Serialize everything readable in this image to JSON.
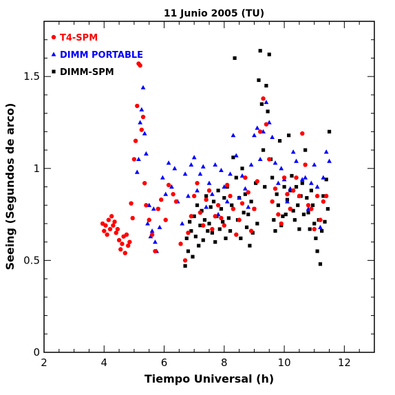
{
  "chart_data": {
    "type": "scatter",
    "title": "11 Junio 2005 (TU)",
    "xlabel": "Tiempo Universal (h)",
    "ylabel": "Seeing (Segundos de arco)",
    "xlim": [
      2,
      13
    ],
    "ylim": [
      0,
      1.8
    ],
    "xticks": [
      2,
      4,
      6,
      8,
      10,
      12
    ],
    "xtick_labels": [
      "2",
      "4",
      "6",
      "8",
      "10",
      "12"
    ],
    "yticks": [
      0,
      0.5,
      1,
      1.5
    ],
    "ytick_labels": [
      "0",
      "0.5",
      "1",
      "1.5"
    ],
    "grid": false,
    "legend_position": "top-left",
    "series": [
      {
        "name": "T4-SPM",
        "marker": "circle",
        "color": "#ff0000",
        "x": [
          3.95,
          4.0,
          4.05,
          4.1,
          4.15,
          4.2,
          4.25,
          4.3,
          4.35,
          4.4,
          4.45,
          4.5,
          4.55,
          4.6,
          4.65,
          4.7,
          4.75,
          4.8,
          4.85,
          4.9,
          4.95,
          5.0,
          5.05,
          5.1,
          5.15,
          5.2,
          5.25,
          5.3,
          5.35,
          5.4,
          5.5,
          5.6,
          5.7,
          5.8,
          5.9,
          6.05,
          6.15,
          6.3,
          6.4,
          6.55,
          6.7,
          6.8,
          6.9,
          7.0,
          7.1,
          7.2,
          7.3,
          7.4,
          7.5,
          7.6,
          7.7,
          7.8,
          7.9,
          8.0,
          8.1,
          8.2,
          8.3,
          8.4,
          8.5,
          8.6,
          8.7,
          8.8,
          8.9,
          9.0,
          9.1,
          9.2,
          9.3,
          9.4,
          9.5,
          9.6,
          9.7,
          9.8,
          9.9,
          10.0,
          10.1,
          10.2,
          10.3,
          10.4,
          10.5,
          10.6,
          10.7,
          10.8,
          10.9,
          11.0,
          11.1,
          11.2,
          11.3,
          11.4
        ],
        "y": [
          0.7,
          0.66,
          0.69,
          0.64,
          0.72,
          0.67,
          0.74,
          0.69,
          0.71,
          0.65,
          0.67,
          0.61,
          0.56,
          0.59,
          0.63,
          0.54,
          0.64,
          0.58,
          0.6,
          0.81,
          0.73,
          1.05,
          1.15,
          1.34,
          1.57,
          1.56,
          1.21,
          1.28,
          0.92,
          0.8,
          0.72,
          0.64,
          0.55,
          0.78,
          0.83,
          0.72,
          0.91,
          0.86,
          0.82,
          0.59,
          0.5,
          0.65,
          0.74,
          0.85,
          0.92,
          0.76,
          0.69,
          0.83,
          0.88,
          0.67,
          0.74,
          0.8,
          0.73,
          0.69,
          0.91,
          0.85,
          0.78,
          0.64,
          0.72,
          0.81,
          0.95,
          0.87,
          0.66,
          0.78,
          0.93,
          1.2,
          1.38,
          1.24,
          1.05,
          0.82,
          0.89,
          0.75,
          0.7,
          0.95,
          0.86,
          0.78,
          0.88,
          0.95,
          0.85,
          1.19,
          1.02,
          0.8,
          0.78,
          0.67,
          0.85,
          0.72,
          0.82,
          0.85
        ]
      },
      {
        "name": "DIMM PORTABLE",
        "marker": "triangle",
        "color": "#0000ff",
        "x": [
          5.1,
          5.15,
          5.2,
          5.25,
          5.3,
          5.35,
          5.4,
          5.45,
          5.5,
          5.55,
          5.6,
          5.65,
          5.7,
          5.75,
          5.85,
          5.95,
          6.05,
          6.15,
          6.25,
          6.35,
          6.45,
          6.6,
          6.7,
          6.8,
          6.9,
          7.0,
          7.1,
          7.2,
          7.3,
          7.4,
          7.5,
          7.6,
          7.7,
          7.8,
          7.9,
          8.0,
          8.1,
          8.2,
          8.3,
          8.4,
          8.5,
          8.6,
          8.7,
          8.8,
          8.9,
          9.0,
          9.1,
          9.2,
          9.3,
          9.4,
          9.5,
          9.6,
          9.7,
          9.8,
          9.9,
          10.0,
          10.1,
          10.2,
          10.3,
          10.4,
          10.5,
          10.6,
          10.7,
          10.8,
          10.9,
          11.0,
          11.1,
          11.2,
          11.3,
          11.4,
          11.5
        ],
        "y": [
          0.98,
          1.05,
          1.25,
          1.32,
          1.44,
          1.19,
          1.08,
          0.7,
          0.8,
          0.63,
          0.66,
          0.78,
          0.6,
          0.55,
          0.68,
          0.95,
          0.86,
          1.03,
          0.9,
          1.0,
          0.82,
          0.7,
          0.97,
          0.85,
          1.02,
          1.06,
          0.88,
          0.97,
          1.01,
          0.79,
          0.92,
          0.86,
          1.02,
          0.75,
          0.99,
          0.9,
          0.82,
          0.97,
          1.18,
          1.07,
          0.84,
          0.96,
          0.89,
          0.79,
          1.02,
          1.18,
          1.22,
          1.05,
          1.2,
          1.36,
          1.25,
          1.17,
          1.03,
          0.92,
          1.0,
          0.94,
          0.82,
          0.89,
          1.09,
          1.04,
          0.85,
          0.94,
          0.95,
          0.78,
          0.92,
          1.02,
          0.9,
          0.68,
          0.95,
          1.09,
          1.04
        ]
      },
      {
        "name": "DIMM-SPM",
        "marker": "square",
        "color": "#000000",
        "x": [
          6.7,
          6.75,
          6.8,
          6.85,
          6.9,
          6.95,
          7.0,
          7.05,
          7.1,
          7.15,
          7.2,
          7.25,
          7.3,
          7.35,
          7.4,
          7.45,
          7.5,
          7.55,
          7.6,
          7.65,
          7.7,
          7.75,
          7.8,
          7.85,
          7.9,
          7.95,
          8.0,
          8.05,
          8.1,
          8.15,
          8.2,
          8.25,
          8.3,
          8.35,
          8.4,
          8.45,
          8.5,
          8.55,
          8.6,
          8.65,
          8.7,
          8.75,
          8.8,
          8.85,
          8.9,
          8.95,
          9.0,
          9.05,
          9.1,
          9.15,
          9.2,
          9.25,
          9.3,
          9.35,
          9.4,
          9.45,
          9.5,
          9.55,
          9.6,
          9.65,
          9.7,
          9.75,
          9.8,
          9.85,
          9.9,
          9.95,
          10.0,
          10.05,
          10.1,
          10.15,
          10.2,
          10.25,
          10.3,
          10.35,
          10.4,
          10.45,
          10.5,
          10.55,
          10.6,
          10.65,
          10.7,
          10.75,
          10.8,
          10.85,
          10.9,
          10.95,
          11.0,
          11.05,
          11.1,
          11.15,
          11.2,
          11.25,
          11.3,
          11.35,
          11.4,
          11.45,
          11.5
        ],
        "y": [
          0.47,
          0.62,
          0.55,
          0.71,
          0.66,
          0.52,
          0.74,
          0.63,
          0.8,
          0.58,
          0.69,
          0.77,
          0.61,
          0.72,
          0.85,
          0.66,
          0.7,
          0.79,
          0.65,
          0.82,
          0.6,
          0.74,
          0.88,
          0.67,
          0.78,
          0.71,
          0.84,
          0.62,
          0.9,
          0.73,
          0.66,
          0.8,
          1.06,
          1.6,
          0.95,
          0.72,
          0.84,
          0.62,
          1.0,
          0.76,
          0.86,
          0.68,
          0.75,
          0.58,
          0.82,
          0.65,
          0.78,
          0.92,
          0.7,
          1.48,
          1.64,
          1.35,
          1.1,
          0.9,
          1.45,
          1.31,
          1.62,
          1.05,
          0.95,
          0.72,
          0.66,
          0.86,
          0.8,
          1.15,
          0.69,
          0.74,
          0.9,
          0.75,
          0.83,
          1.18,
          0.88,
          0.96,
          0.77,
          0.72,
          0.9,
          0.8,
          0.67,
          0.85,
          0.92,
          0.75,
          1.1,
          0.84,
          0.76,
          0.67,
          0.88,
          0.8,
          0.7,
          0.62,
          0.55,
          0.72,
          0.48,
          0.66,
          0.85,
          0.71,
          0.94,
          0.78,
          1.2
        ]
      }
    ]
  },
  "legend": [
    {
      "label": "T4-SPM",
      "color": "#ff0000",
      "marker": "circle"
    },
    {
      "label": "DIMM PORTABLE",
      "color": "#0000ff",
      "marker": "triangle"
    },
    {
      "label": "DIMM-SPM",
      "color": "#000000",
      "marker": "square"
    }
  ]
}
